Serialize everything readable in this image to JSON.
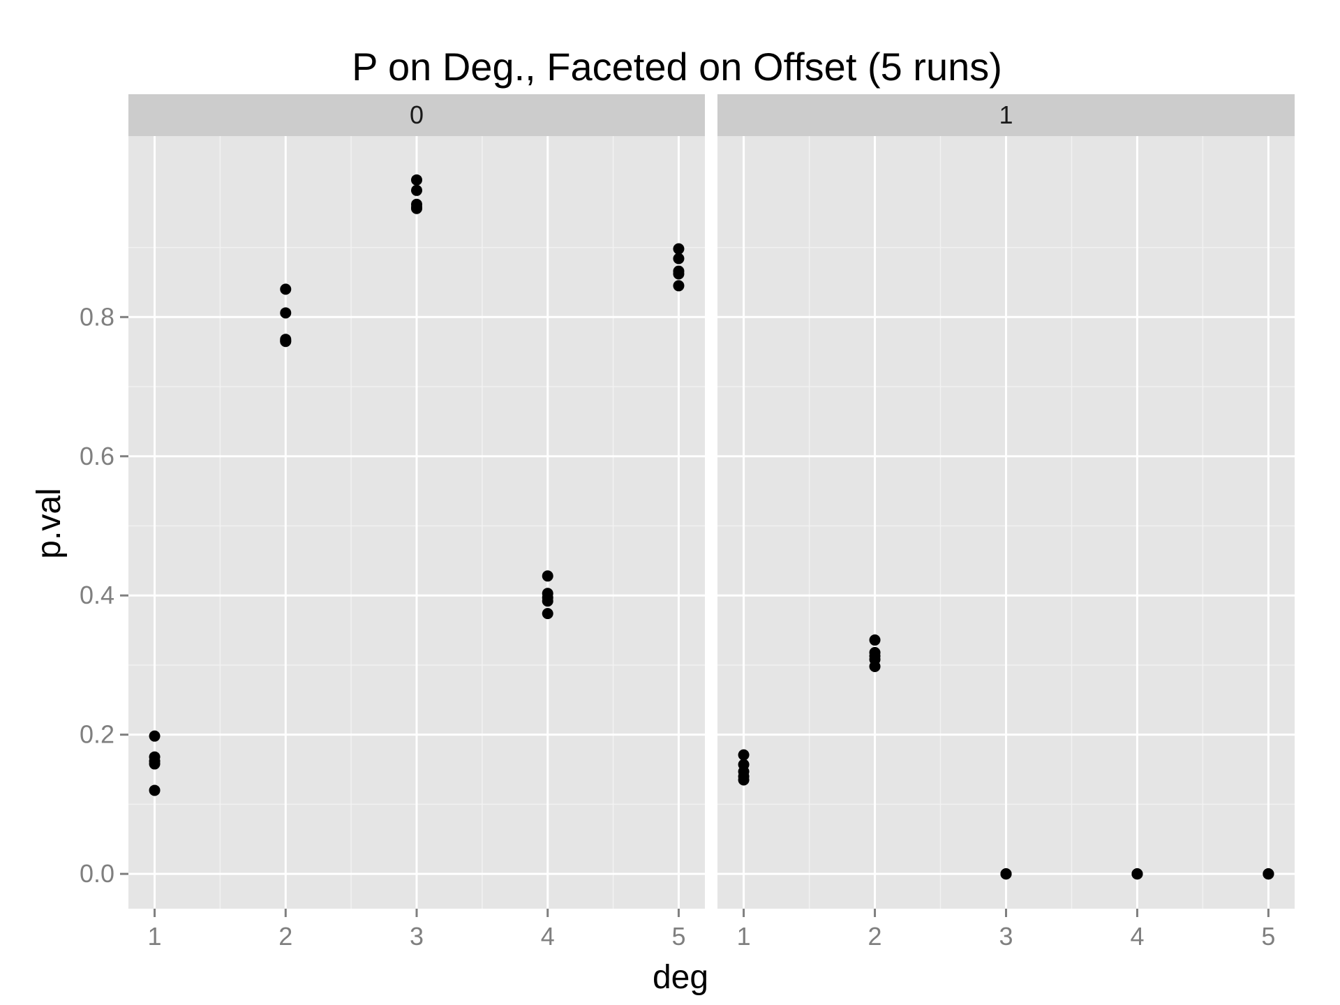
{
  "chart_data": {
    "type": "scatter",
    "title": "P on Deg., Faceted on Offset (5 runs)",
    "xlabel": "deg",
    "ylabel": "p.val",
    "x_ticks": [
      1,
      2,
      3,
      4,
      5
    ],
    "y_ticks": [
      "0.0",
      "0.2",
      "0.4",
      "0.6",
      "0.8"
    ],
    "y_tick_values": [
      0.0,
      0.2,
      0.4,
      0.6,
      0.8
    ],
    "xlim": [
      0.8,
      5.2
    ],
    "ylim": [
      -0.05,
      1.06
    ],
    "facet_variable": "offset",
    "colors": {
      "panel_bg": "#e5e5e5",
      "grid_major": "#ffffff",
      "grid_minor": "#f2f2f2",
      "strip_bg": "#cccccc",
      "point": "#000000",
      "tick": "#7f7f7f"
    },
    "facets": [
      {
        "label": "0",
        "points": [
          {
            "x": 1,
            "y": 0.198
          },
          {
            "x": 1,
            "y": 0.168
          },
          {
            "x": 1,
            "y": 0.162
          },
          {
            "x": 1,
            "y": 0.158
          },
          {
            "x": 1,
            "y": 0.12
          },
          {
            "x": 2,
            "y": 0.84
          },
          {
            "x": 2,
            "y": 0.806
          },
          {
            "x": 2,
            "y": 0.768
          },
          {
            "x": 2,
            "y": 0.766
          },
          {
            "x": 2,
            "y": 0.765
          },
          {
            "x": 3,
            "y": 0.997
          },
          {
            "x": 3,
            "y": 0.982
          },
          {
            "x": 3,
            "y": 0.962
          },
          {
            "x": 3,
            "y": 0.958
          },
          {
            "x": 3,
            "y": 0.956
          },
          {
            "x": 4,
            "y": 0.428
          },
          {
            "x": 4,
            "y": 0.403
          },
          {
            "x": 4,
            "y": 0.397
          },
          {
            "x": 4,
            "y": 0.392
          },
          {
            "x": 4,
            "y": 0.374
          },
          {
            "x": 5,
            "y": 0.898
          },
          {
            "x": 5,
            "y": 0.884
          },
          {
            "x": 5,
            "y": 0.866
          },
          {
            "x": 5,
            "y": 0.862
          },
          {
            "x": 5,
            "y": 0.845
          }
        ]
      },
      {
        "label": "1",
        "points": [
          {
            "x": 1,
            "y": 0.171
          },
          {
            "x": 1,
            "y": 0.157
          },
          {
            "x": 1,
            "y": 0.147
          },
          {
            "x": 1,
            "y": 0.14
          },
          {
            "x": 1,
            "y": 0.135
          },
          {
            "x": 2,
            "y": 0.336
          },
          {
            "x": 2,
            "y": 0.318
          },
          {
            "x": 2,
            "y": 0.313
          },
          {
            "x": 2,
            "y": 0.308
          },
          {
            "x": 2,
            "y": 0.298
          },
          {
            "x": 3,
            "y": 0.0
          },
          {
            "x": 3,
            "y": 0.0
          },
          {
            "x": 3,
            "y": 0.0
          },
          {
            "x": 3,
            "y": 0.0
          },
          {
            "x": 3,
            "y": 0.0
          },
          {
            "x": 4,
            "y": 0.0
          },
          {
            "x": 4,
            "y": 0.0
          },
          {
            "x": 4,
            "y": 0.0
          },
          {
            "x": 4,
            "y": 0.0
          },
          {
            "x": 4,
            "y": 0.0
          },
          {
            "x": 5,
            "y": 0.0
          },
          {
            "x": 5,
            "y": 0.0
          },
          {
            "x": 5,
            "y": 0.0
          },
          {
            "x": 5,
            "y": 0.0
          },
          {
            "x": 5,
            "y": 0.0
          }
        ]
      }
    ]
  }
}
